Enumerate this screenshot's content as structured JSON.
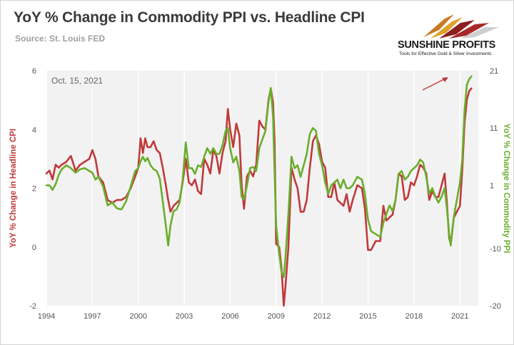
{
  "header": {
    "title": "YoY % Change in Commodity PPI vs. Headline CPI",
    "source": "Source: St. Louis FED",
    "brand": "SUNSHINE PROFITS",
    "tagline": "Tools for Effective Gold & Silver Investments"
  },
  "annotation": {
    "date_label": "Oct. 15, 2021"
  },
  "colors": {
    "cpi": "#c0393b",
    "ppi": "#6aae2c",
    "arrow": "#c0393b",
    "plot_bg": "#f2f2f2",
    "grid": "#ffffff"
  },
  "chart_data": {
    "type": "line",
    "title": "YoY % Change in Commodity PPI vs. Headline CPI",
    "ylabel_left": "YoY % Change in Headline CPI",
    "ylabel_right": "YoY % Change in Commodity PPI",
    "xlim": [
      1994,
      2022.2
    ],
    "ylim_left": [
      -2,
      6
    ],
    "ylim_right": [
      -20,
      21
    ],
    "x_ticks": [
      "1994",
      "1997",
      "2000",
      "2003",
      "2006",
      "2009",
      "2012",
      "2015",
      "2018",
      "2021"
    ],
    "y_ticks_left": [
      "-2",
      "0",
      "2",
      "4",
      "6"
    ],
    "y_ticks_right": [
      "-20",
      "-10",
      "1",
      "11",
      "21"
    ],
    "grid": "vertical",
    "series": [
      {
        "name": "YoY % Change in Headline CPI",
        "axis": "left",
        "points": [
          [
            1994.0,
            2.5
          ],
          [
            1994.2,
            2.6
          ],
          [
            1994.4,
            2.3
          ],
          [
            1994.6,
            2.8
          ],
          [
            1994.8,
            2.7
          ],
          [
            1995.0,
            2.8
          ],
          [
            1995.3,
            2.9
          ],
          [
            1995.6,
            3.1
          ],
          [
            1995.9,
            2.6
          ],
          [
            1996.2,
            2.8
          ],
          [
            1996.5,
            2.9
          ],
          [
            1996.8,
            3.0
          ],
          [
            1997.0,
            3.3
          ],
          [
            1997.2,
            3.0
          ],
          [
            1997.4,
            2.4
          ],
          [
            1997.7,
            2.2
          ],
          [
            1998.0,
            1.6
          ],
          [
            1998.3,
            1.5
          ],
          [
            1998.6,
            1.6
          ],
          [
            1998.9,
            1.6
          ],
          [
            1999.2,
            1.7
          ],
          [
            1999.5,
            2.0
          ],
          [
            1999.8,
            2.4
          ],
          [
            2000.0,
            2.7
          ],
          [
            2000.15,
            3.7
          ],
          [
            2000.3,
            3.2
          ],
          [
            2000.45,
            3.7
          ],
          [
            2000.6,
            3.4
          ],
          [
            2000.8,
            3.4
          ],
          [
            2001.0,
            3.6
          ],
          [
            2001.2,
            3.3
          ],
          [
            2001.4,
            3.2
          ],
          [
            2001.6,
            2.7
          ],
          [
            2001.8,
            2.1
          ],
          [
            2001.95,
            1.6
          ],
          [
            2002.1,
            1.2
          ],
          [
            2002.3,
            1.4
          ],
          [
            2002.5,
            1.5
          ],
          [
            2002.7,
            1.6
          ],
          [
            2002.9,
            2.2
          ],
          [
            2003.1,
            3.0
          ],
          [
            2003.3,
            2.2
          ],
          [
            2003.5,
            2.1
          ],
          [
            2003.7,
            2.3
          ],
          [
            2003.9,
            1.9
          ],
          [
            2004.1,
            1.8
          ],
          [
            2004.3,
            3.0
          ],
          [
            2004.5,
            2.8
          ],
          [
            2004.7,
            2.5
          ],
          [
            2004.9,
            3.3
          ],
          [
            2005.1,
            3.1
          ],
          [
            2005.3,
            2.5
          ],
          [
            2005.5,
            3.2
          ],
          [
            2005.7,
            3.6
          ],
          [
            2005.85,
            4.7
          ],
          [
            2006.0,
            4.0
          ],
          [
            2006.2,
            3.4
          ],
          [
            2006.4,
            4.2
          ],
          [
            2006.6,
            3.8
          ],
          [
            2006.75,
            2.1
          ],
          [
            2006.9,
            1.3
          ],
          [
            2007.1,
            2.4
          ],
          [
            2007.3,
            2.6
          ],
          [
            2007.5,
            2.4
          ],
          [
            2007.7,
            2.8
          ],
          [
            2007.9,
            4.3
          ],
          [
            2008.1,
            4.1
          ],
          [
            2008.3,
            4.0
          ],
          [
            2008.5,
            5.0
          ],
          [
            2008.65,
            5.4
          ],
          [
            2008.8,
            4.9
          ],
          [
            2008.9,
            3.6
          ],
          [
            2009.0,
            0.1
          ],
          [
            2009.2,
            0.0
          ],
          [
            2009.35,
            -0.7
          ],
          [
            2009.5,
            -2.0
          ],
          [
            2009.6,
            -1.4
          ],
          [
            2009.8,
            0.0
          ],
          [
            2010.0,
            2.7
          ],
          [
            2010.2,
            2.3
          ],
          [
            2010.4,
            2.0
          ],
          [
            2010.6,
            1.2
          ],
          [
            2010.8,
            1.2
          ],
          [
            2011.0,
            1.6
          ],
          [
            2011.2,
            2.7
          ],
          [
            2011.4,
            3.6
          ],
          [
            2011.6,
            3.8
          ],
          [
            2011.8,
            3.5
          ],
          [
            2012.0,
            2.9
          ],
          [
            2012.2,
            2.7
          ],
          [
            2012.4,
            1.7
          ],
          [
            2012.6,
            1.7
          ],
          [
            2012.8,
            2.2
          ],
          [
            2013.0,
            1.6
          ],
          [
            2013.2,
            1.5
          ],
          [
            2013.4,
            1.4
          ],
          [
            2013.6,
            1.8
          ],
          [
            2013.8,
            1.2
          ],
          [
            2014.0,
            1.6
          ],
          [
            2014.3,
            2.1
          ],
          [
            2014.6,
            2.0
          ],
          [
            2014.8,
            1.3
          ],
          [
            2015.0,
            -0.1
          ],
          [
            2015.2,
            -0.1
          ],
          [
            2015.5,
            0.2
          ],
          [
            2015.8,
            0.2
          ],
          [
            2016.0,
            1.4
          ],
          [
            2016.2,
            0.9
          ],
          [
            2016.4,
            1.0
          ],
          [
            2016.6,
            1.1
          ],
          [
            2016.8,
            1.6
          ],
          [
            2017.0,
            2.5
          ],
          [
            2017.2,
            2.4
          ],
          [
            2017.4,
            1.6
          ],
          [
            2017.6,
            1.7
          ],
          [
            2017.8,
            2.2
          ],
          [
            2018.0,
            2.1
          ],
          [
            2018.2,
            2.4
          ],
          [
            2018.4,
            2.8
          ],
          [
            2018.6,
            2.7
          ],
          [
            2018.8,
            2.5
          ],
          [
            2019.0,
            1.6
          ],
          [
            2019.2,
            1.9
          ],
          [
            2019.4,
            1.7
          ],
          [
            2019.6,
            1.7
          ],
          [
            2019.8,
            2.1
          ],
          [
            2020.0,
            2.5
          ],
          [
            2020.15,
            1.5
          ],
          [
            2020.3,
            0.3
          ],
          [
            2020.4,
            0.1
          ],
          [
            2020.6,
            1.0
          ],
          [
            2020.8,
            1.2
          ],
          [
            2021.0,
            1.4
          ],
          [
            2021.15,
            2.6
          ],
          [
            2021.3,
            4.2
          ],
          [
            2021.45,
            5.0
          ],
          [
            2021.6,
            5.3
          ],
          [
            2021.75,
            5.4
          ]
        ]
      },
      {
        "name": "YoY % Change in Commodity PPI",
        "axis": "right",
        "points": [
          [
            1994.0,
            1.0
          ],
          [
            1994.2,
            1.0
          ],
          [
            1994.4,
            0.2
          ],
          [
            1994.6,
            1.2
          ],
          [
            1994.8,
            2.8
          ],
          [
            1995.0,
            3.8
          ],
          [
            1995.3,
            4.5
          ],
          [
            1995.6,
            4.0
          ],
          [
            1995.9,
            3.2
          ],
          [
            1996.2,
            3.8
          ],
          [
            1996.5,
            4.0
          ],
          [
            1996.8,
            3.5
          ],
          [
            1997.0,
            3.2
          ],
          [
            1997.2,
            2.0
          ],
          [
            1997.4,
            2.5
          ],
          [
            1997.7,
            0.8
          ],
          [
            1998.0,
            -2.5
          ],
          [
            1998.3,
            -2.0
          ],
          [
            1998.6,
            -3.0
          ],
          [
            1998.9,
            -3.2
          ],
          [
            1999.2,
            -1.8
          ],
          [
            1999.5,
            0.8
          ],
          [
            1999.8,
            3.5
          ],
          [
            2000.0,
            4.0
          ],
          [
            2000.15,
            5.2
          ],
          [
            2000.3,
            6.0
          ],
          [
            2000.45,
            5.2
          ],
          [
            2000.6,
            5.8
          ],
          [
            2000.8,
            4.5
          ],
          [
            2001.0,
            3.8
          ],
          [
            2001.2,
            3.5
          ],
          [
            2001.4,
            2.2
          ],
          [
            2001.6,
            -1.8
          ],
          [
            2001.8,
            -6.0
          ],
          [
            2001.95,
            -9.5
          ],
          [
            2002.1,
            -6.0
          ],
          [
            2002.3,
            -3.5
          ],
          [
            2002.5,
            -3.2
          ],
          [
            2002.7,
            -2.0
          ],
          [
            2002.9,
            2.0
          ],
          [
            2003.1,
            8.5
          ],
          [
            2003.3,
            4.0
          ],
          [
            2003.5,
            4.0
          ],
          [
            2003.7,
            3.0
          ],
          [
            2003.9,
            4.5
          ],
          [
            2004.1,
            4.2
          ],
          [
            2004.3,
            6.0
          ],
          [
            2004.5,
            7.5
          ],
          [
            2004.7,
            6.5
          ],
          [
            2004.9,
            7.5
          ],
          [
            2005.1,
            6.5
          ],
          [
            2005.3,
            6.5
          ],
          [
            2005.5,
            8.0
          ],
          [
            2005.7,
            10.5
          ],
          [
            2005.85,
            11.0
          ],
          [
            2006.0,
            7.5
          ],
          [
            2006.2,
            5.0
          ],
          [
            2006.4,
            6.0
          ],
          [
            2006.6,
            3.5
          ],
          [
            2006.75,
            -1.0
          ],
          [
            2006.9,
            -1.5
          ],
          [
            2007.1,
            1.0
          ],
          [
            2007.3,
            4.0
          ],
          [
            2007.5,
            4.2
          ],
          [
            2007.7,
            3.5
          ],
          [
            2007.9,
            7.5
          ],
          [
            2008.1,
            9.0
          ],
          [
            2008.3,
            10.5
          ],
          [
            2008.5,
            15.5
          ],
          [
            2008.65,
            18.0
          ],
          [
            2008.8,
            13.0
          ],
          [
            2008.9,
            3.0
          ],
          [
            2009.0,
            -6.0
          ],
          [
            2009.2,
            -11.0
          ],
          [
            2009.35,
            -14.0
          ],
          [
            2009.5,
            -15.0
          ],
          [
            2009.6,
            -12.0
          ],
          [
            2009.8,
            -4.0
          ],
          [
            2010.0,
            6.0
          ],
          [
            2010.2,
            4.0
          ],
          [
            2010.4,
            4.5
          ],
          [
            2010.6,
            2.5
          ],
          [
            2010.8,
            4.5
          ],
          [
            2011.0,
            6.5
          ],
          [
            2011.2,
            10.0
          ],
          [
            2011.4,
            11.0
          ],
          [
            2011.6,
            10.5
          ],
          [
            2011.8,
            6.5
          ],
          [
            2012.0,
            4.5
          ],
          [
            2012.2,
            1.5
          ],
          [
            2012.4,
            -0.5
          ],
          [
            2012.6,
            1.0
          ],
          [
            2012.8,
            1.5
          ],
          [
            2013.0,
            2.0
          ],
          [
            2013.2,
            0.5
          ],
          [
            2013.4,
            2.0
          ],
          [
            2013.6,
            0.5
          ],
          [
            2013.8,
            0.5
          ],
          [
            2014.0,
            1.0
          ],
          [
            2014.3,
            2.5
          ],
          [
            2014.6,
            2.0
          ],
          [
            2014.8,
            -0.5
          ],
          [
            2015.0,
            -5.0
          ],
          [
            2015.2,
            -7.0
          ],
          [
            2015.5,
            -7.5
          ],
          [
            2015.8,
            -8.0
          ],
          [
            2016.0,
            -5.5
          ],
          [
            2016.2,
            -4.0
          ],
          [
            2016.4,
            -2.5
          ],
          [
            2016.6,
            -3.5
          ],
          [
            2016.8,
            -1.5
          ],
          [
            2017.0,
            3.0
          ],
          [
            2017.2,
            3.5
          ],
          [
            2017.4,
            2.0
          ],
          [
            2017.6,
            2.5
          ],
          [
            2017.8,
            3.5
          ],
          [
            2018.0,
            4.0
          ],
          [
            2018.2,
            4.5
          ],
          [
            2018.4,
            5.5
          ],
          [
            2018.6,
            5.0
          ],
          [
            2018.8,
            2.5
          ],
          [
            2019.0,
            -0.5
          ],
          [
            2019.2,
            0.5
          ],
          [
            2019.4,
            -1.0
          ],
          [
            2019.6,
            -2.0
          ],
          [
            2019.8,
            -1.0
          ],
          [
            2020.0,
            0.5
          ],
          [
            2020.15,
            -3.0
          ],
          [
            2020.3,
            -7.5
          ],
          [
            2020.4,
            -9.5
          ],
          [
            2020.6,
            -4.5
          ],
          [
            2020.8,
            -1.5
          ],
          [
            2021.0,
            1.5
          ],
          [
            2021.15,
            5.5
          ],
          [
            2021.3,
            14.0
          ],
          [
            2021.45,
            18.5
          ],
          [
            2021.6,
            19.5
          ],
          [
            2021.75,
            20.0
          ]
        ]
      }
    ]
  }
}
